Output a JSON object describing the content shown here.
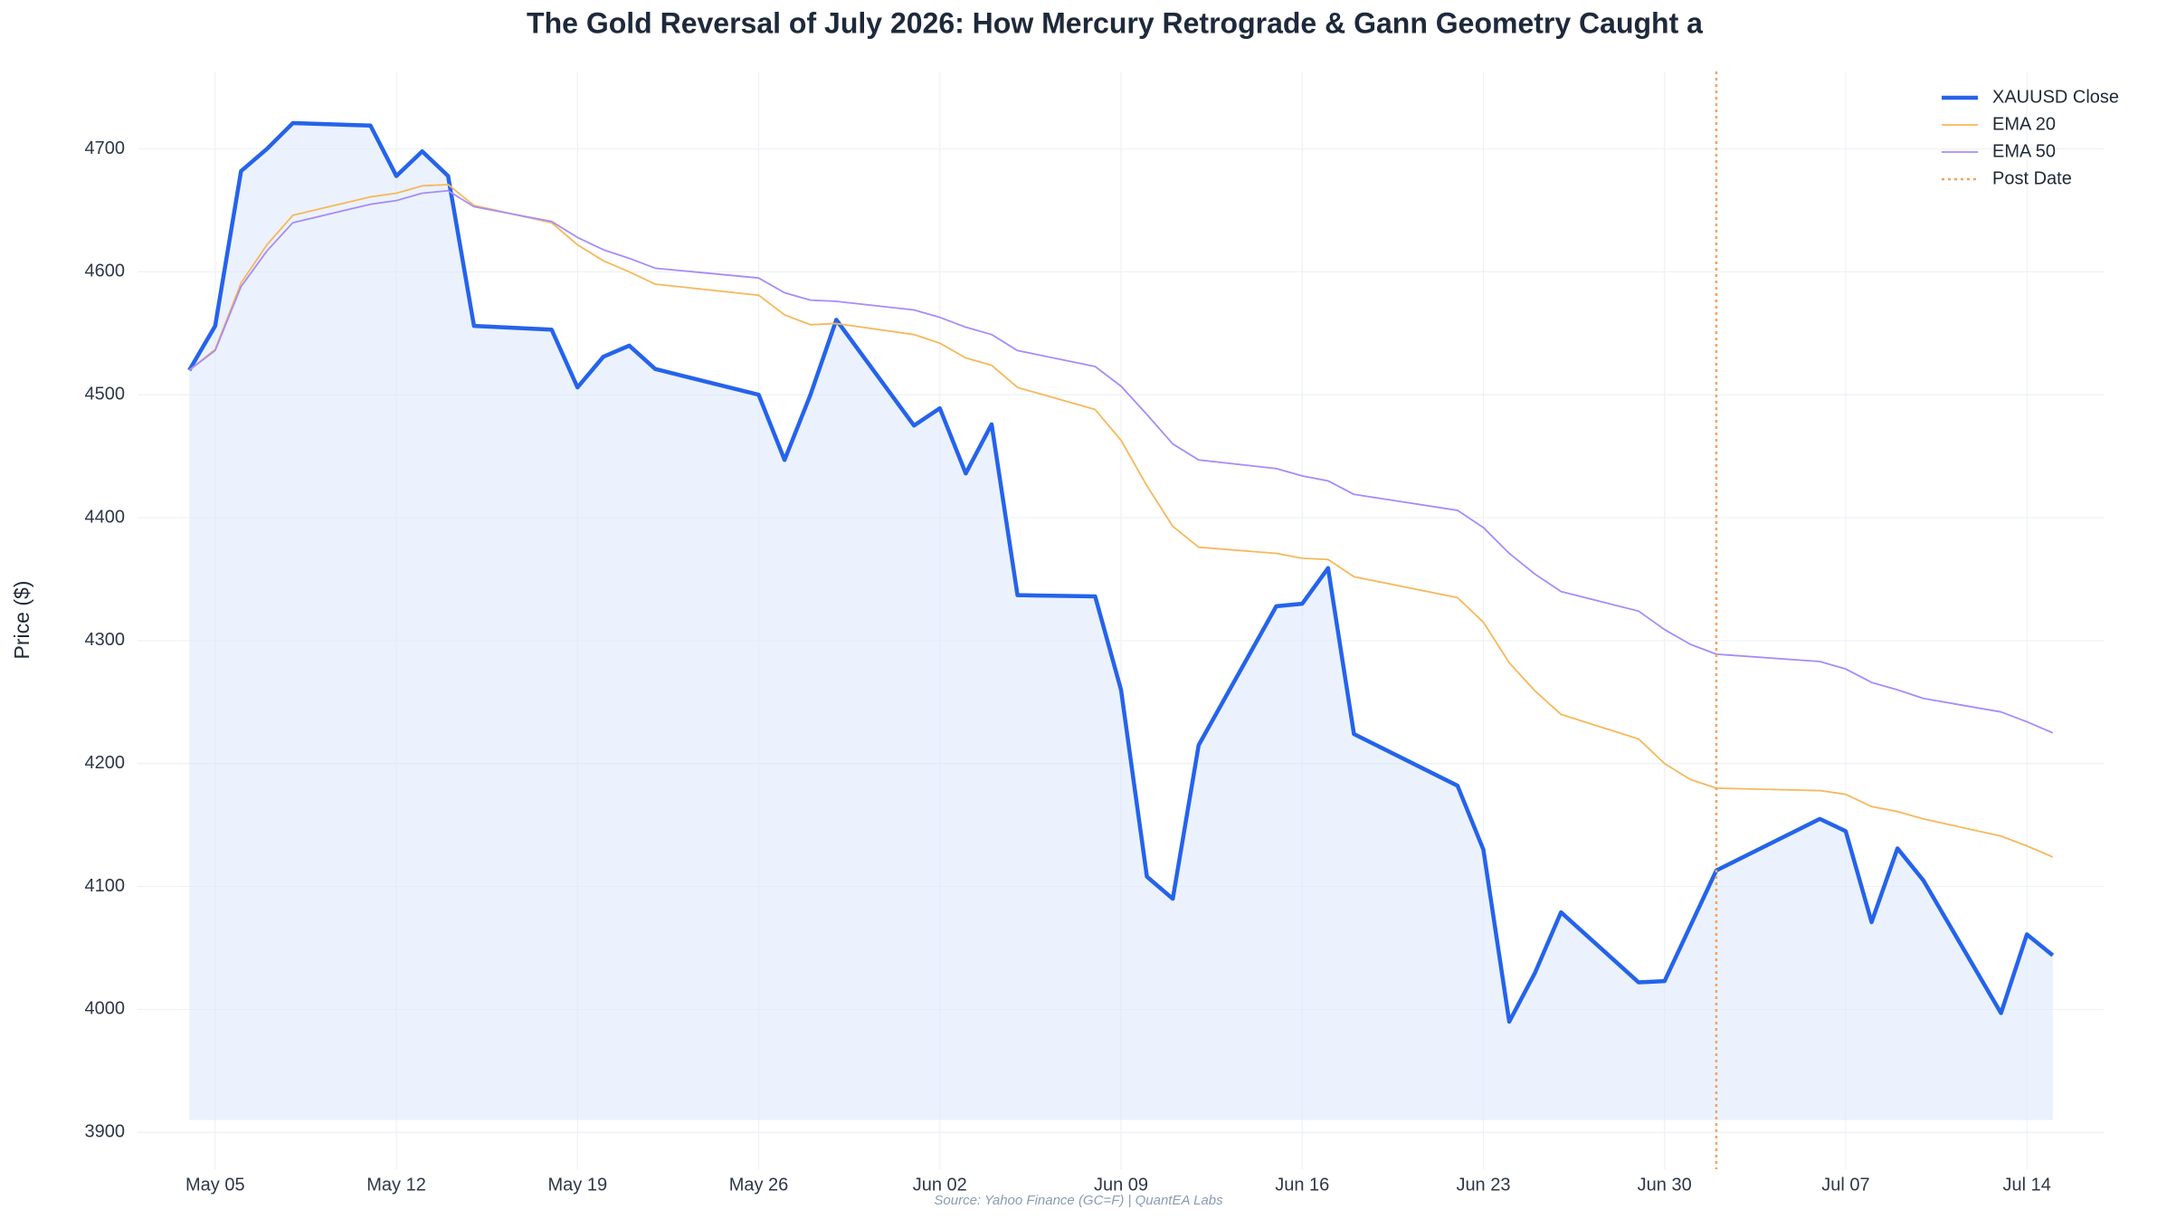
{
  "chart_data": {
    "type": "line",
    "title": "The Gold Reversal of July 2026: How Mercury Retrograde & Gann Geometry Caught a",
    "ylabel": "Price ($)",
    "source": "Source: Yahoo Finance (GC=F) | QuantEA Labs",
    "x": [
      "May 04",
      "May 05",
      "May 06",
      "May 07",
      "May 08",
      "May 11",
      "May 12",
      "May 13",
      "May 14",
      "May 15",
      "May 18",
      "May 19",
      "May 20",
      "May 21",
      "May 22",
      "May 26",
      "May 27",
      "May 28",
      "May 29",
      "Jun 01",
      "Jun 02",
      "Jun 03",
      "Jun 04",
      "Jun 05",
      "Jun 08",
      "Jun 09",
      "Jun 10",
      "Jun 11",
      "Jun 12",
      "Jun 15",
      "Jun 16",
      "Jun 17",
      "Jun 18",
      "Jun 22",
      "Jun 23",
      "Jun 24",
      "Jun 25",
      "Jun 26",
      "Jun 29",
      "Jun 30",
      "Jul 01",
      "Jul 02",
      "Jul 06",
      "Jul 07",
      "Jul 08",
      "Jul 09",
      "Jul 10",
      "Jul 13",
      "Jul 14",
      "Jul 15"
    ],
    "series": [
      {
        "name": "XAUUSD Close",
        "color": "#2563eb",
        "width": 4.5,
        "fill": "#dbe7fb",
        "values": [
          4520,
          4556,
          4682,
          4700,
          4721,
          4719,
          4678,
          4698,
          4678,
          4556,
          4553,
          4506,
          4531,
          4540,
          4521,
          4500,
          4447,
          4500,
          4561,
          4475,
          4489,
          4436,
          4476,
          4337,
          4336,
          4260,
          4108,
          4090,
          4215,
          4328,
          4330,
          4359,
          4224,
          4182,
          4130,
          3990,
          4030,
          4079,
          4022,
          4023,
          4068,
          4113,
          4155,
          4145,
          4071,
          4131,
          4105,
          3997,
          4061,
          4044
        ]
      },
      {
        "name": "EMA 20",
        "color": "#f6b85a",
        "width": 1.8,
        "values": [
          4520,
          4537,
          4591,
          4622,
          4646,
          4661,
          4664,
          4670,
          4671,
          4654,
          4640,
          4622,
          4609,
          4600,
          4590,
          4581,
          4565,
          4557,
          4558,
          4549,
          4542,
          4530,
          4524,
          4506,
          4488,
          4463,
          4426,
          4393,
          4376,
          4371,
          4367,
          4366,
          4352,
          4335,
          4315,
          4282,
          4259,
          4240,
          4220,
          4200,
          4187,
          4180,
          4178,
          4175,
          4165,
          4161,
          4155,
          4141,
          4133,
          4124
        ]
      },
      {
        "name": "EMA 50",
        "color": "#a78bfa",
        "width": 1.8,
        "values": [
          4520,
          4536,
          4588,
          4617,
          4640,
          4655,
          4658,
          4664,
          4666,
          4653,
          4641,
          4628,
          4618,
          4611,
          4603,
          4595,
          4583,
          4577,
          4576,
          4569,
          4563,
          4555,
          4549,
          4536,
          4523,
          4507,
          4484,
          4460,
          4447,
          4440,
          4434,
          4430,
          4419,
          4406,
          4392,
          4371,
          4354,
          4340,
          4324,
          4309,
          4297,
          4289,
          4283,
          4277,
          4266,
          4260,
          4253,
          4242,
          4234,
          4225
        ]
      }
    ],
    "vline": {
      "name": "Post Date",
      "x": "Jul 02",
      "color": "#f4a261"
    },
    "fill_to": 3910,
    "xlim": [
      "May 02",
      "Jul 17"
    ],
    "xticks": [
      "May 05",
      "May 12",
      "May 19",
      "May 26",
      "Jun 02",
      "Jun 09",
      "Jun 16",
      "Jun 23",
      "Jun 30",
      "Jul 07",
      "Jul 14"
    ],
    "ylim": [
      3870,
      4763
    ],
    "yticks": [
      3900,
      4000,
      4100,
      4200,
      4300,
      4400,
      4500,
      4600,
      4700
    ],
    "grid": true,
    "legend": "upper right"
  }
}
